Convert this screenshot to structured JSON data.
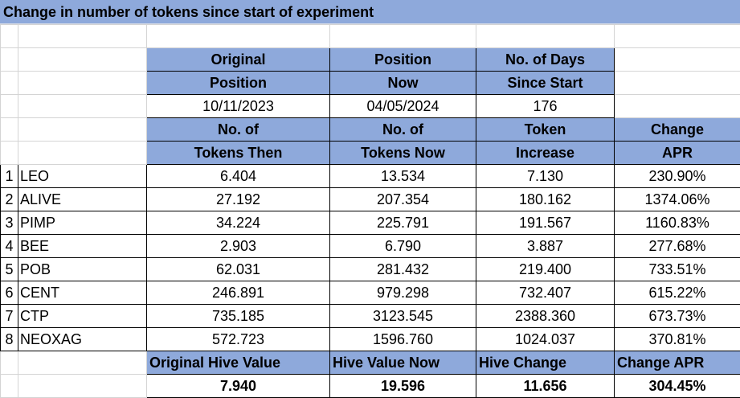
{
  "title": "Change in number of tokens since start of experiment",
  "header1": {
    "original_position": [
      "Original",
      "Position"
    ],
    "position_now": [
      "Position",
      "Now"
    ],
    "days_since_start": [
      "No. of Days",
      "Since Start"
    ]
  },
  "dates": {
    "original": "10/11/2023",
    "now": "04/05/2024",
    "days": "176"
  },
  "header2": {
    "tokens_then": [
      "No. of",
      "Tokens Then"
    ],
    "tokens_now": [
      "No. of",
      "Tokens Now"
    ],
    "token_increase": [
      "Token",
      "Increase"
    ],
    "change_apr": [
      "Change",
      "APR"
    ]
  },
  "rows": [
    {
      "num": "1",
      "ticker": "LEO",
      "then": "6.404",
      "now": "13.534",
      "increase": "7.130",
      "apr": "230.90%"
    },
    {
      "num": "2",
      "ticker": "ALIVE",
      "then": "27.192",
      "now": "207.354",
      "increase": "180.162",
      "apr": "1374.06%"
    },
    {
      "num": "3",
      "ticker": "PIMP",
      "then": "34.224",
      "now": "225.791",
      "increase": "191.567",
      "apr": "1160.83%"
    },
    {
      "num": "4",
      "ticker": "BEE",
      "then": "2.903",
      "now": "6.790",
      "increase": "3.887",
      "apr": "277.68%"
    },
    {
      "num": "5",
      "ticker": "POB",
      "then": "62.031",
      "now": "281.432",
      "increase": "219.400",
      "apr": "733.51%"
    },
    {
      "num": "6",
      "ticker": "CENT",
      "then": "246.891",
      "now": "979.298",
      "increase": "732.407",
      "apr": "615.22%"
    },
    {
      "num": "7",
      "ticker": "CTP",
      "then": "735.185",
      "now": "3123.545",
      "increase": "2388.360",
      "apr": "673.73%"
    },
    {
      "num": "8",
      "ticker": "NEOXAG",
      "then": "572.723",
      "now": "1596.760",
      "increase": "1024.037",
      "apr": "370.81%"
    }
  ],
  "summary": {
    "labels": {
      "original_hive_value": "Original Hive Value",
      "hive_value_now": "Hive Value Now",
      "hive_change": "Hive Change",
      "change_apr": "Change APR"
    },
    "values": {
      "original_hive_value": "7.940",
      "hive_value_now": "19.596",
      "hive_change": "11.656",
      "change_apr": "304.45%"
    }
  },
  "colors": {
    "header_fill": "#8ea9db",
    "gridline": "#d4d4d4"
  }
}
